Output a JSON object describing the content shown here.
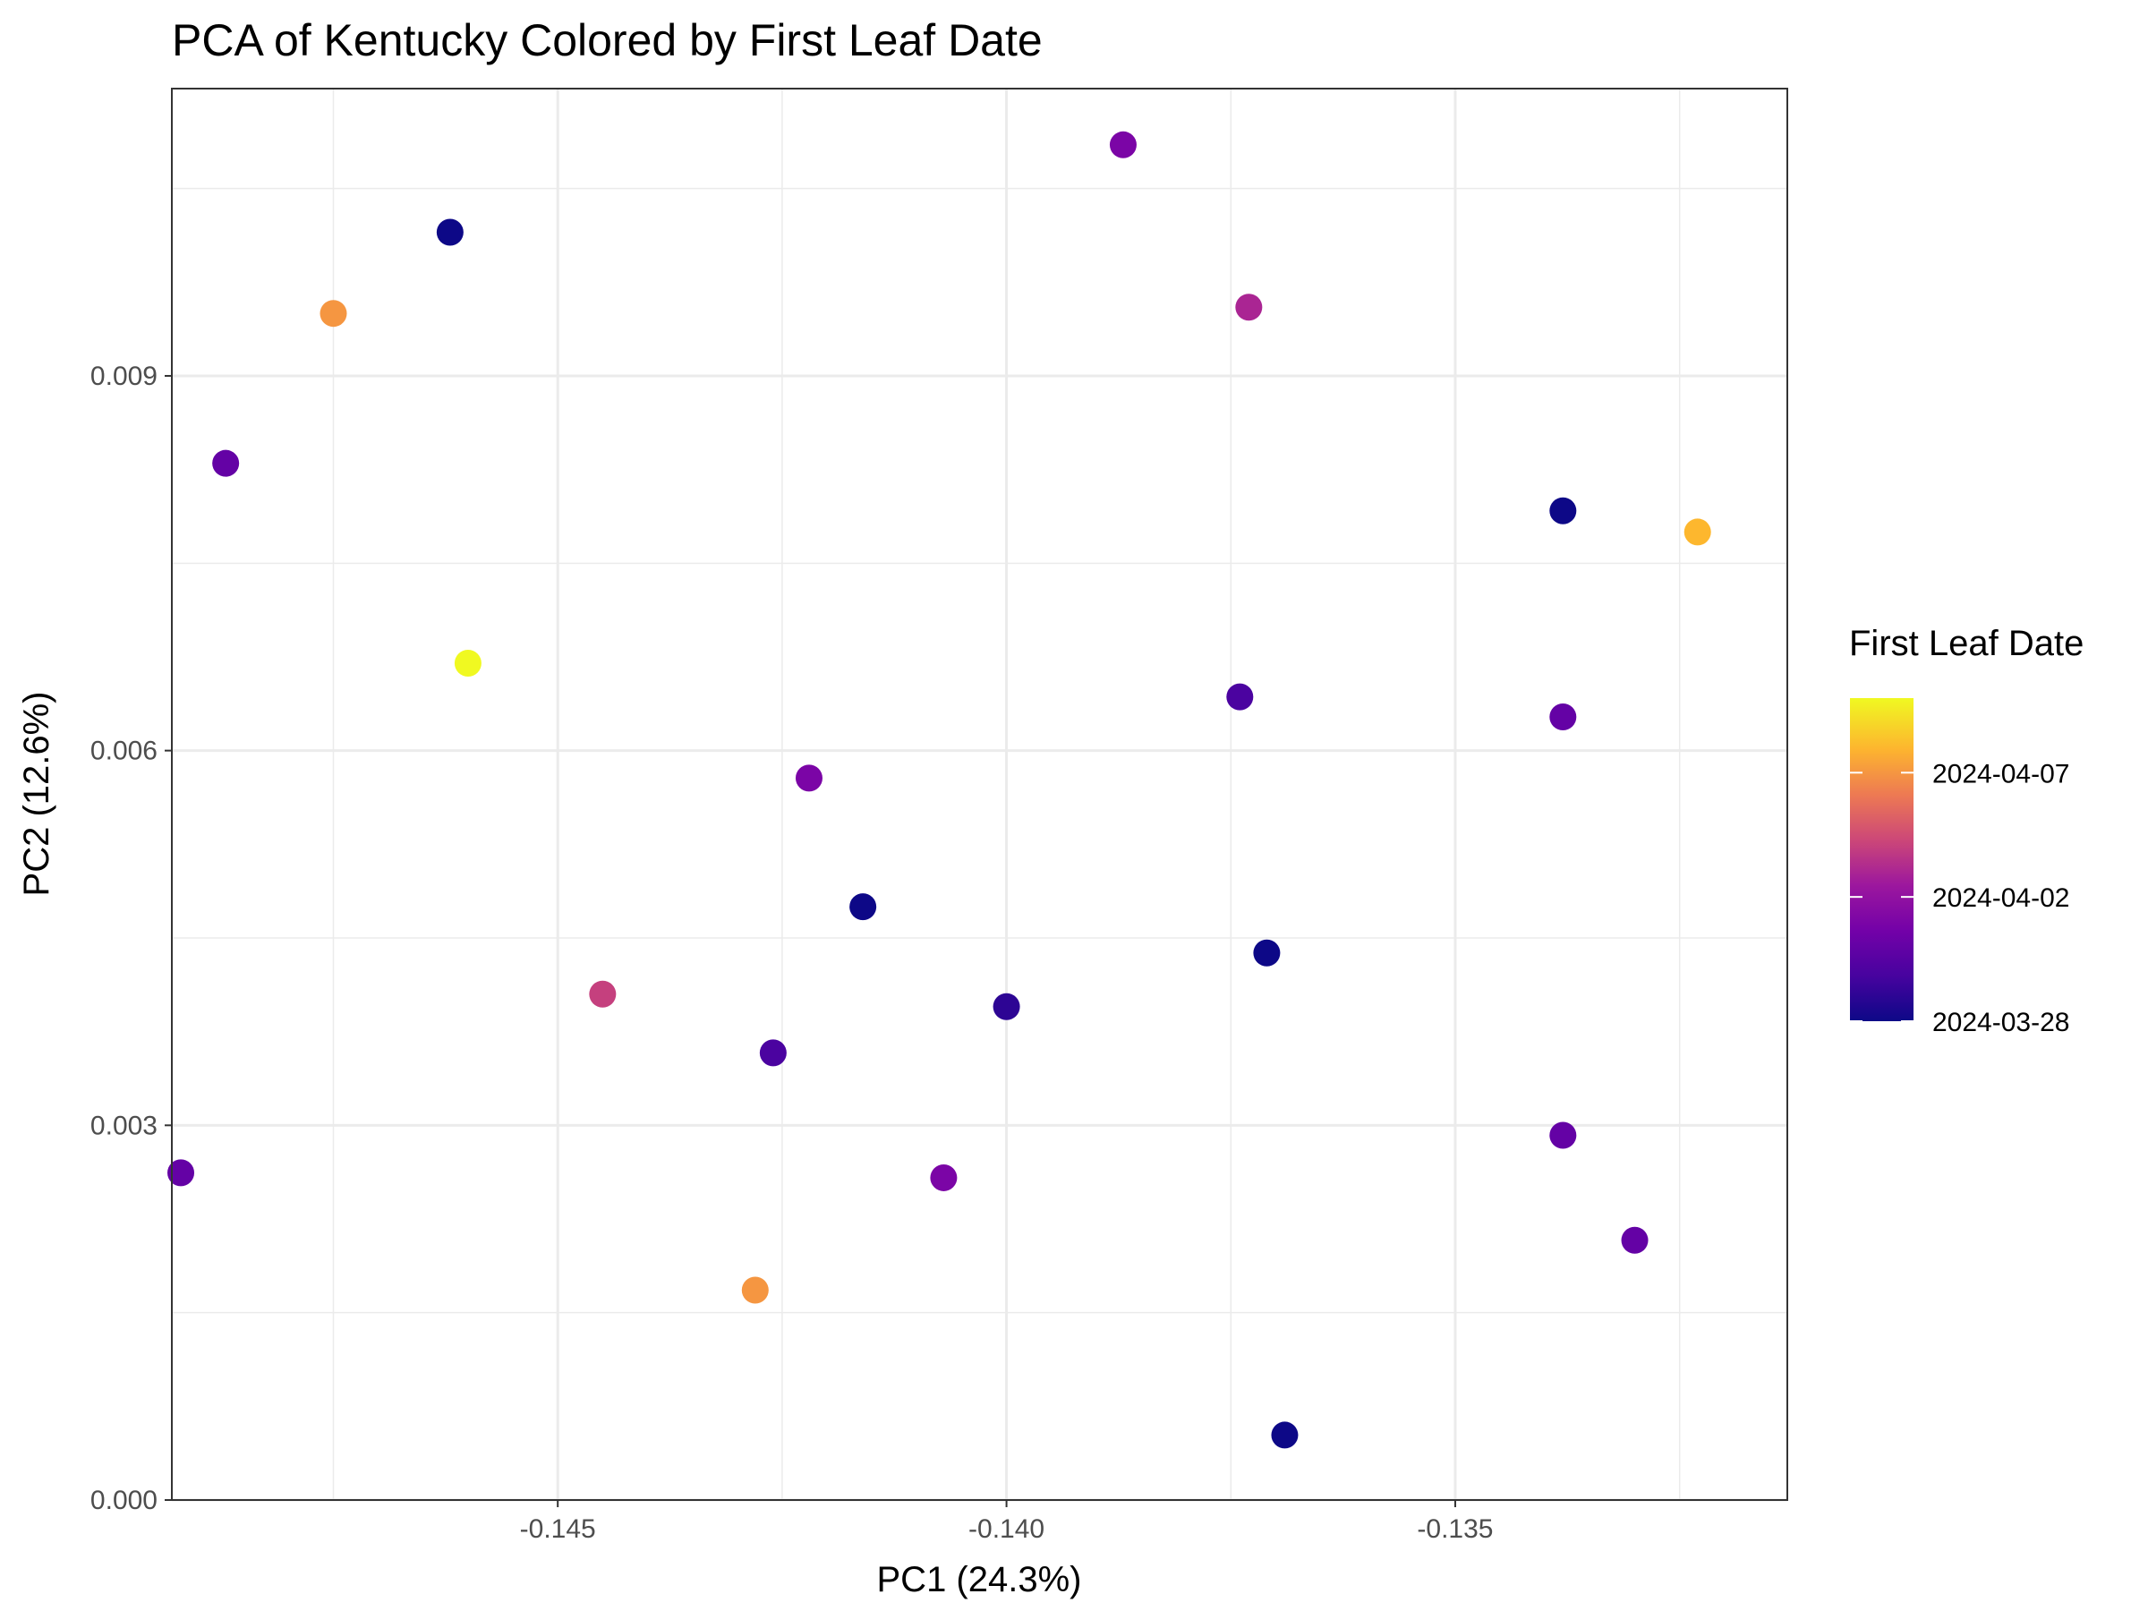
{
  "chart_data": {
    "type": "scatter",
    "title": "PCA of Kentucky Colored by First Leaf Date",
    "xlabel": "PC1 (24.3%)",
    "ylabel": "PC2 (12.6%)",
    "xlim": [
      -0.1493,
      -0.1313
    ],
    "ylim": [
      0.0,
      0.0113
    ],
    "x_ticks": [
      -0.145,
      -0.14,
      -0.135
    ],
    "x_tick_labels": [
      "-0.145",
      "-0.140",
      "-0.135"
    ],
    "y_ticks": [
      0.0,
      0.003,
      0.006,
      0.009
    ],
    "y_tick_labels": [
      "0.000",
      "0.003",
      "0.006",
      "0.009"
    ],
    "grid": true,
    "legend": {
      "title": "First Leaf Date",
      "placement": "right",
      "colormap": "plasma",
      "min_date": "2024-03-28",
      "max_date": "2024-04-10",
      "ticks": [
        {
          "date": "2024-03-28",
          "label": "2024-03-28"
        },
        {
          "date": "2024-04-02",
          "label": "2024-04-02"
        },
        {
          "date": "2024-04-07",
          "label": "2024-04-07"
        }
      ]
    },
    "points": [
      {
        "x": -0.1462,
        "y": 0.01015,
        "date": "2024-03-28"
      },
      {
        "x": -0.1475,
        "y": 0.0095,
        "date": "2024-04-07"
      },
      {
        "x": -0.1487,
        "y": 0.0083,
        "date": "2024-03-31"
      },
      {
        "x": -0.146,
        "y": 0.0067,
        "date": "2024-04-10"
      },
      {
        "x": -0.1492,
        "y": 0.00262,
        "date": "2024-03-31"
      },
      {
        "x": -0.1445,
        "y": 0.00405,
        "date": "2024-04-04"
      },
      {
        "x": -0.1428,
        "y": 0.00168,
        "date": "2024-04-07"
      },
      {
        "x": -0.1426,
        "y": 0.00358,
        "date": "2024-03-30"
      },
      {
        "x": -0.1422,
        "y": 0.00578,
        "date": "2024-04-01"
      },
      {
        "x": -0.1416,
        "y": 0.00475,
        "date": "2024-03-28"
      },
      {
        "x": -0.1407,
        "y": 0.00258,
        "date": "2024-04-01"
      },
      {
        "x": -0.14,
        "y": 0.00395,
        "date": "2024-03-29"
      },
      {
        "x": -0.1387,
        "y": 0.01085,
        "date": "2024-04-01"
      },
      {
        "x": -0.1373,
        "y": 0.00955,
        "date": "2024-04-03"
      },
      {
        "x": -0.1374,
        "y": 0.00643,
        "date": "2024-03-30"
      },
      {
        "x": -0.1371,
        "y": 0.00438,
        "date": "2024-03-28"
      },
      {
        "x": -0.1369,
        "y": 0.00052,
        "date": "2024-03-28"
      },
      {
        "x": -0.1338,
        "y": 0.00792,
        "date": "2024-03-28"
      },
      {
        "x": -0.1338,
        "y": 0.00627,
        "date": "2024-03-31"
      },
      {
        "x": -0.1338,
        "y": 0.00292,
        "date": "2024-03-31"
      },
      {
        "x": -0.133,
        "y": 0.00208,
        "date": "2024-03-31"
      },
      {
        "x": -0.1323,
        "y": 0.00775,
        "date": "2024-04-08"
      }
    ]
  }
}
